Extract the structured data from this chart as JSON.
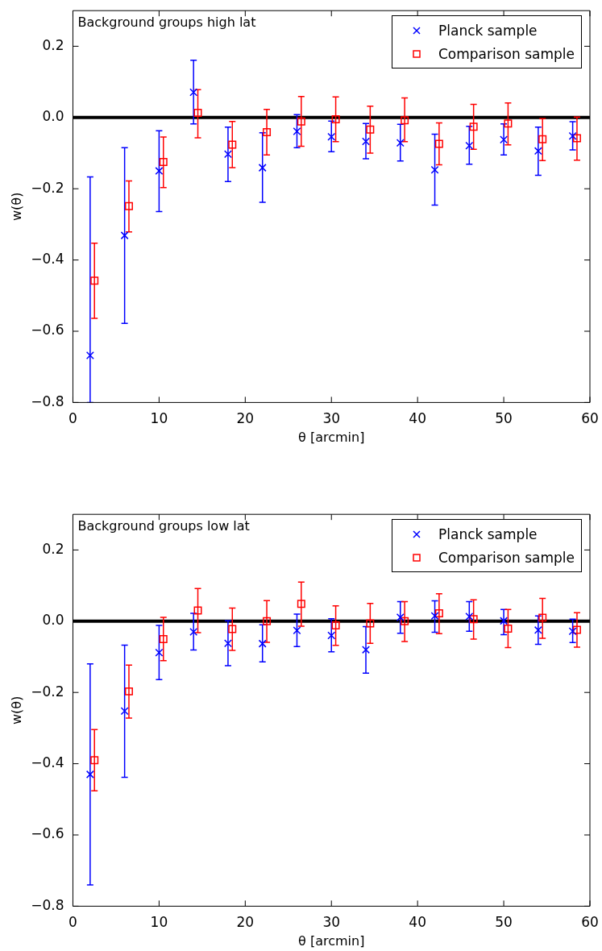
{
  "chart_data": [
    {
      "type": "scatter",
      "title": "Background groups high lat",
      "xlabel": "θ [arcmin]",
      "ylabel": "w(θ)",
      "xlim": [
        0,
        60
      ],
      "xticks": [
        0,
        10,
        20,
        30,
        40,
        50,
        60
      ],
      "ylim": [
        -0.8,
        0.3
      ],
      "yticks": [
        -0.8,
        -0.6,
        -0.4,
        -0.2,
        {
          "value": 0,
          "label": "0.0"
        },
        0.2
      ],
      "legend": "top right",
      "ref_lines": [
        {
          "axis": "y",
          "value": 0,
          "color": "#000000"
        }
      ],
      "series": [
        {
          "name": "Planck sample",
          "color": "#0000ff",
          "marker": "cross",
          "x": [
            2,
            6,
            10,
            14,
            18,
            22,
            26,
            30,
            34,
            38,
            42,
            46,
            50,
            54,
            58
          ],
          "values": [
            -0.668,
            -0.331,
            -0.15,
            0.071,
            -0.103,
            -0.141,
            -0.039,
            -0.054,
            -0.067,
            -0.071,
            -0.147,
            -0.079,
            -0.062,
            -0.094,
            -0.052
          ],
          "errors": [
            [
              -0.8,
              -0.167
            ],
            [
              -0.578,
              -0.085
            ],
            [
              -0.264,
              -0.037
            ],
            [
              -0.018,
              0.161
            ],
            [
              -0.18,
              -0.027
            ],
            [
              -0.238,
              -0.043
            ],
            [
              -0.085,
              0.008
            ],
            [
              -0.096,
              -0.01
            ],
            [
              -0.116,
              -0.017
            ],
            [
              -0.122,
              -0.019
            ],
            [
              -0.246,
              -0.047
            ],
            [
              -0.131,
              -0.025
            ],
            [
              -0.105,
              -0.018
            ],
            [
              -0.162,
              -0.027
            ],
            [
              -0.091,
              -0.012
            ]
          ]
        },
        {
          "name": "Comparison sample",
          "color": "#ff0000",
          "marker": "square",
          "x": [
            2.5,
            6.5,
            10.5,
            14.5,
            18.5,
            22.5,
            26.5,
            30.5,
            34.5,
            38.5,
            42.5,
            46.5,
            50.5,
            54.5,
            58.5
          ],
          "values": [
            -0.458,
            -0.249,
            -0.125,
            0.013,
            -0.076,
            -0.041,
            -0.011,
            -0.005,
            -0.034,
            -0.008,
            -0.074,
            -0.026,
            -0.017,
            -0.061,
            -0.058
          ],
          "errors": [
            [
              -0.564,
              -0.353
            ],
            [
              -0.321,
              -0.178
            ],
            [
              -0.197,
              -0.055
            ],
            [
              -0.057,
              0.078
            ],
            [
              -0.141,
              -0.011
            ],
            [
              -0.105,
              0.023
            ],
            [
              -0.081,
              0.059
            ],
            [
              -0.068,
              0.058
            ],
            [
              -0.1,
              0.032
            ],
            [
              -0.068,
              0.055
            ],
            [
              -0.133,
              -0.015
            ],
            [
              -0.089,
              0.037
            ],
            [
              -0.077,
              0.041
            ],
            [
              -0.121,
              -0.003
            ],
            [
              -0.12,
              0.001
            ]
          ]
        }
      ]
    },
    {
      "type": "scatter",
      "title": "Background groups low lat",
      "xlabel": "θ [arcmin]",
      "ylabel": "w(θ)",
      "xlim": [
        0,
        60
      ],
      "xticks": [
        0,
        10,
        20,
        30,
        40,
        50,
        60
      ],
      "ylim": [
        -0.8,
        0.3
      ],
      "yticks": [
        -0.8,
        -0.6,
        -0.4,
        -0.2,
        {
          "value": 0,
          "label": "0.0"
        },
        0.2
      ],
      "legend": "top right",
      "ref_lines": [
        {
          "axis": "y",
          "value": 0,
          "color": "#000000"
        }
      ],
      "series": [
        {
          "name": "Planck sample",
          "color": "#0000ff",
          "marker": "cross",
          "x": [
            2,
            6,
            10,
            14,
            18,
            22,
            26,
            30,
            34,
            38,
            42,
            46,
            50,
            54,
            58
          ],
          "values": [
            -0.43,
            -0.252,
            -0.088,
            -0.03,
            -0.062,
            -0.063,
            -0.026,
            -0.04,
            -0.08,
            0.011,
            0.015,
            0.013,
            0.001,
            -0.025,
            -0.028
          ],
          "errors": [
            [
              -0.74,
              -0.12
            ],
            [
              -0.438,
              -0.067
            ],
            [
              -0.164,
              -0.012
            ],
            [
              -0.081,
              0.022
            ],
            [
              -0.125,
              0.001
            ],
            [
              -0.114,
              -0.01
            ],
            [
              -0.071,
              0.02
            ],
            [
              -0.086,
              0.007
            ],
            [
              -0.146,
              -0.015
            ],
            [
              -0.034,
              0.055
            ],
            [
              -0.031,
              0.057
            ],
            [
              -0.028,
              0.055
            ],
            [
              -0.038,
              0.033
            ],
            [
              -0.065,
              0.015
            ],
            [
              -0.06,
              0.006
            ]
          ]
        },
        {
          "name": "Comparison sample",
          "color": "#ff0000",
          "marker": "square",
          "x": [
            2.5,
            6.5,
            10.5,
            14.5,
            18.5,
            22.5,
            26.5,
            30.5,
            34.5,
            38.5,
            42.5,
            46.5,
            50.5,
            54.5,
            58.5
          ],
          "values": [
            -0.39,
            -0.197,
            -0.05,
            0.03,
            -0.022,
            0.0,
            0.049,
            -0.012,
            -0.006,
            0.0,
            0.022,
            0.006,
            -0.021,
            0.01,
            -0.024
          ],
          "errors": [
            [
              -0.476,
              -0.304
            ],
            [
              -0.272,
              -0.123
            ],
            [
              -0.111,
              0.011
            ],
            [
              -0.032,
              0.092
            ],
            [
              -0.082,
              0.037
            ],
            [
              -0.059,
              0.058
            ],
            [
              -0.014,
              0.11
            ],
            [
              -0.068,
              0.043
            ],
            [
              -0.062,
              0.05
            ],
            [
              -0.057,
              0.055
            ],
            [
              -0.035,
              0.077
            ],
            [
              -0.05,
              0.06
            ],
            [
              -0.074,
              0.033
            ],
            [
              -0.048,
              0.064
            ],
            [
              -0.073,
              0.024
            ]
          ]
        }
      ]
    }
  ]
}
